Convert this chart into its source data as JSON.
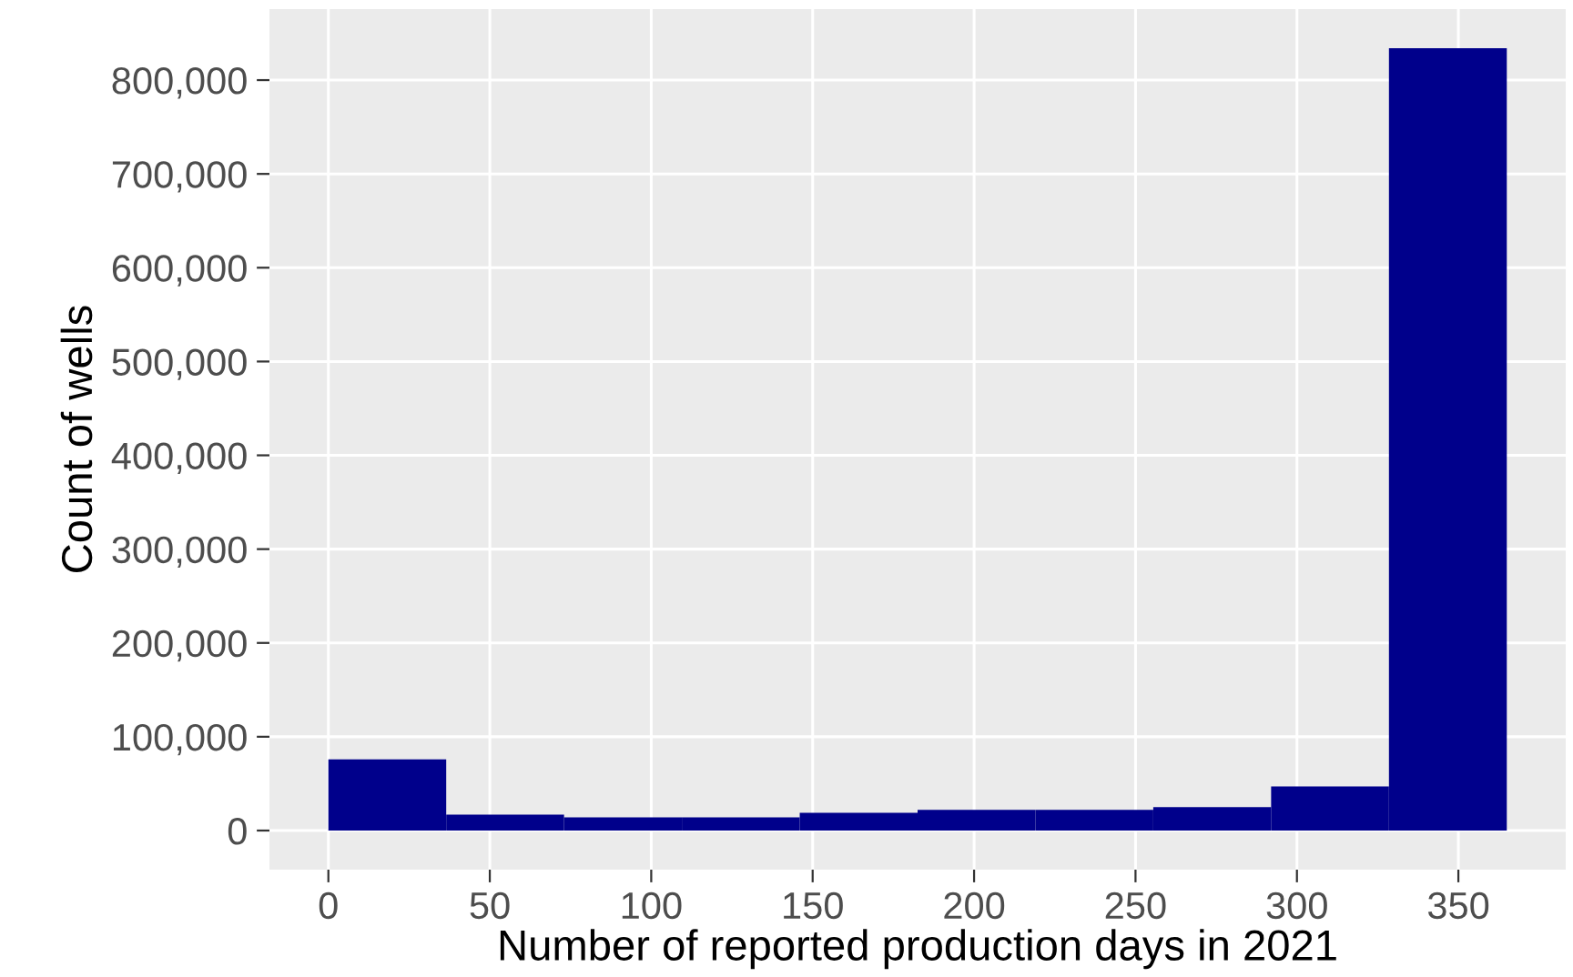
{
  "chart_data": {
    "type": "histogram",
    "xlabel": "Number of reported production days in 2021",
    "ylabel": "Count of wells",
    "bins": [
      0,
      36.5,
      73,
      109.5,
      146,
      182.5,
      219,
      255.5,
      292,
      328.5,
      365
    ],
    "values": [
      76000,
      17000,
      14000,
      14000,
      19000,
      22000,
      22000,
      25000,
      47000,
      834000
    ],
    "color": "#00008b",
    "xlim": [
      -18.25,
      383.25
    ],
    "ylim": [
      -41700,
      875700
    ],
    "xticks": [
      0,
      50,
      100,
      150,
      200,
      250,
      300,
      350
    ],
    "yticks": [
      {
        "value": 0,
        "label": "0"
      },
      {
        "value": 100000,
        "label": "100,000"
      },
      {
        "value": 200000,
        "label": "200,000"
      },
      {
        "value": 300000,
        "label": "300,000"
      },
      {
        "value": 400000,
        "label": "400,000"
      },
      {
        "value": 500000,
        "label": "500,000"
      },
      {
        "value": 600000,
        "label": "600,000"
      },
      {
        "value": 700000,
        "label": "700,000"
      },
      {
        "value": 800000,
        "label": "800,000"
      }
    ],
    "grid": true
  }
}
